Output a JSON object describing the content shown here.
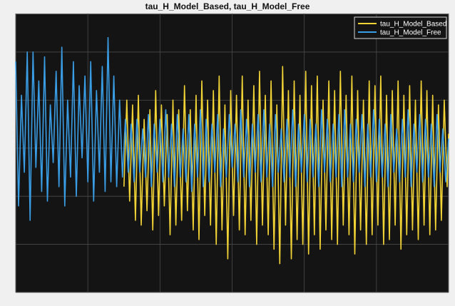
{
  "chart_data": {
    "type": "line",
    "title": "tau_H_Model_Based, tau_H_Model_Free",
    "xlabel": "",
    "ylabel": "",
    "xlim": [
      0,
      60
    ],
    "ylim": [
      -10,
      19
    ],
    "xticks": [
      0,
      10,
      20,
      30,
      40,
      50,
      60
    ],
    "yticks": [
      -10,
      -5,
      0,
      5,
      10,
      15
    ],
    "grid": true,
    "legend_position": "top-right",
    "background": "#141414",
    "series": [
      {
        "name": "tau_H_Model_Based",
        "color": "#f2d335",
        "x": [
          15.0,
          15.4,
          15.8,
          16.2,
          16.6,
          17.0,
          17.4,
          17.8,
          18.2,
          18.6,
          19.0,
          19.4,
          19.8,
          20.2,
          20.6,
          21.0,
          21.4,
          21.8,
          22.2,
          22.6,
          23.0,
          23.4,
          23.8,
          24.2,
          24.6,
          25.0,
          25.4,
          25.8,
          26.2,
          26.6,
          27.0,
          27.4,
          27.8,
          28.2,
          28.6,
          29.0,
          29.4,
          29.8,
          30.2,
          30.6,
          31.0,
          31.4,
          31.8,
          32.2,
          32.6,
          33.0,
          33.4,
          33.8,
          34.2,
          34.6,
          35.0,
          35.4,
          35.8,
          36.2,
          36.6,
          37.0,
          37.4,
          37.8,
          38.2,
          38.6,
          39.0,
          39.4,
          39.8,
          40.2,
          40.6,
          41.0,
          41.4,
          41.8,
          42.2,
          42.6,
          43.0,
          43.4,
          43.8,
          44.2,
          44.6,
          45.0,
          45.4,
          45.8,
          46.2,
          46.6,
          47.0,
          47.4,
          47.8,
          48.2,
          48.6,
          49.0,
          49.4,
          49.8,
          50.2,
          50.6,
          51.0,
          51.4,
          51.8,
          52.2,
          52.6,
          53.0,
          53.4,
          53.8,
          54.2,
          54.6,
          55.0,
          55.4,
          55.8,
          56.2,
          56.6,
          57.0,
          57.4,
          57.8,
          58.2,
          58.6,
          59.0,
          59.4,
          59.8,
          60.0
        ],
        "y": [
          1.0,
          10.0,
          -0.5,
          9.5,
          -2.5,
          10.5,
          -3.0,
          8.0,
          -1.5,
          9.0,
          -3.5,
          11.0,
          -2.0,
          9.5,
          -1.0,
          8.5,
          -4.0,
          10.0,
          -3.0,
          9.0,
          -2.5,
          11.5,
          -1.5,
          9.0,
          -3.5,
          10.5,
          -4.5,
          12.0,
          -2.0,
          10.0,
          -3.0,
          11.0,
          -5.0,
          12.5,
          -3.5,
          9.5,
          -6.5,
          11.0,
          -2.0,
          10.5,
          -3.5,
          12.5,
          -4.0,
          10.0,
          -2.5,
          11.5,
          -5.0,
          13.0,
          -3.0,
          10.5,
          -4.0,
          12.0,
          -5.5,
          9.5,
          -7.0,
          13.5,
          -3.0,
          11.0,
          -6.5,
          12.0,
          -4.5,
          10.5,
          -5.0,
          13.0,
          -6.0,
          11.5,
          -4.0,
          12.5,
          -5.5,
          10.0,
          -3.5,
          12.0,
          -4.5,
          11.0,
          -5.0,
          13.0,
          -3.0,
          10.5,
          -4.0,
          12.5,
          -6.0,
          11.0,
          -3.5,
          10.0,
          -5.0,
          12.0,
          -4.0,
          11.5,
          -3.0,
          12.5,
          -5.0,
          10.5,
          -4.5,
          11.0,
          -3.0,
          12.0,
          -5.5,
          10.5,
          -4.0,
          11.5,
          -3.5,
          10.0,
          -4.5,
          12.0,
          -3.0,
          11.0,
          -4.0,
          10.5,
          -3.5,
          9.5,
          -2.5,
          10.0,
          1.0,
          6.5
        ]
      },
      {
        "name": "tau_H_Model_Free",
        "color": "#3a9ee6",
        "x": [
          0.0,
          0.4,
          0.8,
          1.2,
          1.6,
          2.0,
          2.4,
          2.8,
          3.2,
          3.6,
          4.0,
          4.4,
          4.8,
          5.2,
          5.6,
          6.0,
          6.4,
          6.8,
          7.2,
          7.6,
          8.0,
          8.4,
          8.8,
          9.2,
          9.6,
          10.0,
          10.4,
          10.8,
          11.2,
          11.6,
          12.0,
          12.4,
          12.8,
          13.2,
          13.6,
          14.0,
          14.4,
          14.8,
          15.2,
          15.6,
          16.0,
          16.4,
          16.8,
          17.2,
          17.6,
          18.0,
          18.4,
          18.8,
          19.2,
          19.6,
          20.0,
          20.4,
          20.8,
          21.2,
          21.6,
          22.0,
          22.4,
          22.8,
          23.2,
          23.6,
          24.0,
          24.4,
          24.8,
          25.2,
          25.6,
          26.0,
          26.4,
          26.8,
          27.2,
          27.6,
          28.0,
          28.4,
          28.8,
          29.2,
          29.6,
          30.0,
          30.4,
          30.8,
          31.2,
          31.6,
          32.0,
          32.4,
          32.8,
          33.2,
          33.6,
          34.0,
          34.4,
          34.8,
          35.2,
          35.6,
          36.0,
          36.4,
          36.8,
          37.2,
          37.6,
          38.0,
          38.4,
          38.8,
          39.2,
          39.6,
          40.0,
          40.4,
          40.8,
          41.2,
          41.6,
          42.0,
          42.4,
          42.8,
          43.2,
          43.6,
          44.0,
          44.4,
          44.8,
          45.2,
          45.6,
          46.0,
          46.4,
          46.8,
          47.2,
          47.6,
          48.0,
          48.4,
          48.8,
          49.2,
          49.6,
          50.0,
          50.4,
          50.8,
          51.2,
          51.6,
          52.0,
          52.4,
          52.8,
          53.2,
          53.6,
          54.0,
          54.4,
          54.8,
          55.2,
          55.6,
          56.0,
          56.4,
          56.8,
          57.2,
          57.6,
          58.0,
          58.4,
          58.8,
          59.2,
          59.6,
          60.0
        ],
        "y": [
          14.0,
          -1.0,
          10.5,
          2.5,
          15.0,
          -2.5,
          15.0,
          3.0,
          12.0,
          0.5,
          14.5,
          -0.5,
          9.5,
          3.5,
          13.0,
          1.0,
          15.5,
          -1.0,
          10.0,
          2.0,
          14.0,
          0.0,
          11.5,
          4.0,
          12.5,
          1.5,
          14.0,
          -0.5,
          11.0,
          2.5,
          13.5,
          0.5,
          16.5,
          1.5,
          12.5,
          1.0,
          10.0,
          2.0,
          8.0,
          2.5,
          7.5,
          1.5,
          8.0,
          2.5,
          7.0,
          2.0,
          8.5,
          1.0,
          7.5,
          2.5,
          8.0,
          1.5,
          9.0,
          2.0,
          7.5,
          1.0,
          8.5,
          2.0,
          7.0,
          1.5,
          8.5,
          0.5,
          7.5,
          2.0,
          9.0,
          1.0,
          8.0,
          1.5,
          7.5,
          2.5,
          8.5,
          1.0,
          7.0,
          2.0,
          8.5,
          3.0,
          7.5,
          1.5,
          9.0,
          2.0,
          8.0,
          1.0,
          7.5,
          2.5,
          8.5,
          1.5,
          9.0,
          2.0,
          7.5,
          1.0,
          8.5,
          2.5,
          7.0,
          1.5,
          8.0,
          2.0,
          9.0,
          1.0,
          7.5,
          2.5,
          8.5,
          1.5,
          8.0,
          2.0,
          7.5,
          1.0,
          9.0,
          2.5,
          8.0,
          1.5,
          7.5,
          2.0,
          8.5,
          1.0,
          9.0,
          2.0,
          7.5,
          1.5,
          8.0,
          2.5,
          8.5,
          1.0,
          7.5,
          2.0,
          9.0,
          1.5,
          8.0,
          2.0,
          7.5,
          1.0,
          8.5,
          2.5,
          7.0,
          1.5,
          8.0,
          2.0,
          9.0,
          1.0,
          7.5,
          2.5,
          8.5,
          1.5,
          8.0,
          2.0,
          7.5,
          1.0,
          8.5,
          2.5,
          7.0,
          1.5,
          6.0
        ]
      }
    ]
  }
}
